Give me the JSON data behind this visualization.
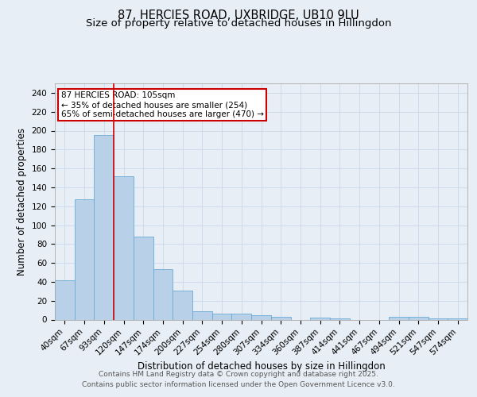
{
  "title_line1": "87, HERCIES ROAD, UXBRIDGE, UB10 9LU",
  "title_line2": "Size of property relative to detached houses in Hillingdon",
  "xlabel": "Distribution of detached houses by size in Hillingdon",
  "ylabel": "Number of detached properties",
  "categories": [
    "40sqm",
    "67sqm",
    "93sqm",
    "120sqm",
    "147sqm",
    "174sqm",
    "200sqm",
    "227sqm",
    "254sqm",
    "280sqm",
    "307sqm",
    "334sqm",
    "360sqm",
    "387sqm",
    "414sqm",
    "441sqm",
    "467sqm",
    "494sqm",
    "521sqm",
    "547sqm",
    "574sqm"
  ],
  "values": [
    42,
    127,
    195,
    152,
    88,
    53,
    31,
    9,
    6,
    6,
    5,
    3,
    0,
    2,
    1,
    0,
    0,
    3,
    3,
    1,
    1
  ],
  "bar_color": "#b8d0e8",
  "bar_edge_color": "#6aaad4",
  "grid_color": "#c8d8e8",
  "background_color": "#e8eef5",
  "plot_bg_color": "#e8eef5",
  "red_line_x": 2.5,
  "annotation_text": "87 HERCIES ROAD: 105sqm\n← 35% of detached houses are smaller (254)\n65% of semi-detached houses are larger (470) →",
  "annotation_box_color": "#cc0000",
  "ylim": [
    0,
    250
  ],
  "yticks": [
    0,
    20,
    40,
    60,
    80,
    100,
    120,
    140,
    160,
    180,
    200,
    220,
    240
  ],
  "footer_line1": "Contains HM Land Registry data © Crown copyright and database right 2025.",
  "footer_line2": "Contains public sector information licensed under the Open Government Licence v3.0.",
  "title_fontsize": 10.5,
  "subtitle_fontsize": 9.5,
  "axis_label_fontsize": 8.5,
  "tick_fontsize": 7.5,
  "annotation_fontsize": 7.5,
  "footer_fontsize": 6.5
}
